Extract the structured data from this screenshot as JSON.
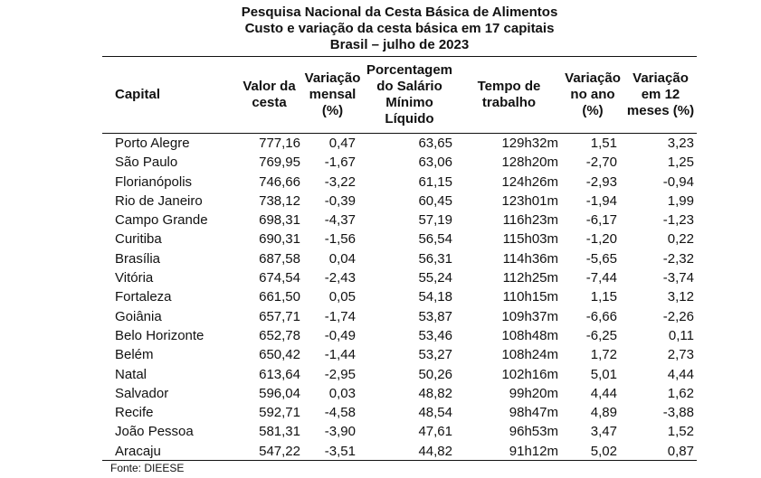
{
  "title": [
    "Pesquisa Nacional da Cesta Básica de Alimentos",
    "Custo e variação da cesta básica em 17 capitais",
    "Brasil – julho de 2023"
  ],
  "headers": [
    "Capital",
    "Valor da cesta",
    "Variação mensal (%)",
    "Porcentagem do Salário Mínimo Líquido",
    "Tempo de trabalho",
    "Variação no ano (%)",
    "Variação em 12 meses (%)"
  ],
  "rows": [
    [
      "Porto Alegre",
      "777,16",
      "0,47",
      "63,65",
      "129h32m",
      "1,51",
      "3,23"
    ],
    [
      "São Paulo",
      "769,95",
      "-1,67",
      "63,06",
      "128h20m",
      "-2,70",
      "1,25"
    ],
    [
      "Florianópolis",
      "746,66",
      "-3,22",
      "61,15",
      "124h26m",
      "-2,93",
      "-0,94"
    ],
    [
      "Rio de Janeiro",
      "738,12",
      "-0,39",
      "60,45",
      "123h01m",
      "-1,94",
      "1,99"
    ],
    [
      "Campo Grande",
      "698,31",
      "-4,37",
      "57,19",
      "116h23m",
      "-6,17",
      "-1,23"
    ],
    [
      "Curitiba",
      "690,31",
      "-1,56",
      "56,54",
      "115h03m",
      "-1,20",
      "0,22"
    ],
    [
      "Brasília",
      "687,58",
      "0,04",
      "56,31",
      "114h36m",
      "-5,65",
      "-2,32"
    ],
    [
      "Vitória",
      "674,54",
      "-2,43",
      "55,24",
      "112h25m",
      "-7,44",
      "-3,74"
    ],
    [
      "Fortaleza",
      "661,50",
      "0,05",
      "54,18",
      "110h15m",
      "1,15",
      "3,12"
    ],
    [
      "Goiânia",
      "657,71",
      "-1,74",
      "53,87",
      "109h37m",
      "-6,66",
      "-2,26"
    ],
    [
      "Belo Horizonte",
      "652,78",
      "-0,49",
      "53,46",
      "108h48m",
      "-6,25",
      "0,11"
    ],
    [
      "Belém",
      "650,42",
      "-1,44",
      "53,27",
      "108h24m",
      "1,72",
      "2,73"
    ],
    [
      "Natal",
      "613,64",
      "-2,95",
      "50,26",
      "102h16m",
      "5,01",
      "4,44"
    ],
    [
      "Salvador",
      "596,04",
      "0,03",
      "48,82",
      "99h20m",
      "4,44",
      "1,62"
    ],
    [
      "Recife",
      "592,71",
      "-4,58",
      "48,54",
      "98h47m",
      "4,89",
      "-3,88"
    ],
    [
      "João Pessoa",
      "581,31",
      "-3,90",
      "47,61",
      "96h53m",
      "3,47",
      "1,52"
    ],
    [
      "Aracaju",
      "547,22",
      "-3,51",
      "44,82",
      "91h12m",
      "5,02",
      "0,87"
    ]
  ],
  "source": "Fonte: DIEESE"
}
